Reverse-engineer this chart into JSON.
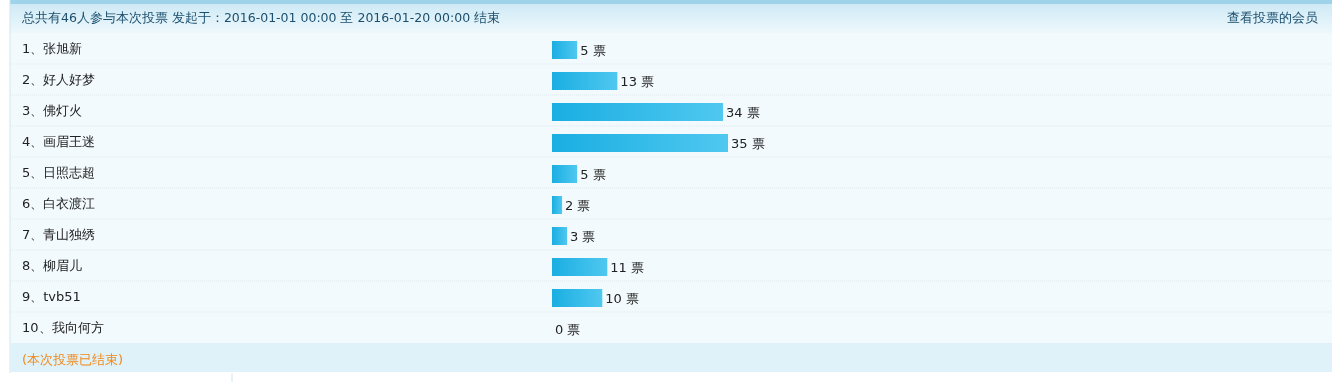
{
  "chart_data": {
    "type": "bar",
    "orientation": "horizontal",
    "title": "总共有46人参与本次投票 发起于：2016-01-01 00:00 至 2016-01-20 00:00 结束",
    "categories": [
      "1、张旭新",
      "2、好人好梦",
      "3、佛灯火",
      "4、画眉王迷",
      "5、日照志超",
      "6、白衣渡江",
      "7、青山独绣",
      "8、柳眉儿",
      "9、tvb51",
      "10、我向何方"
    ],
    "values": [
      5,
      13,
      34,
      35,
      5,
      2,
      3,
      11,
      10,
      0
    ],
    "value_labels": [
      "5 票",
      "13 票",
      "34 票",
      "35 票",
      "5 票",
      "2 票",
      "3 票",
      "11 票",
      "10 票",
      "0 票"
    ],
    "color": "#1aaee2",
    "annotations": [
      "查看投票的会员",
      "(本次投票已结束)"
    ]
  }
}
